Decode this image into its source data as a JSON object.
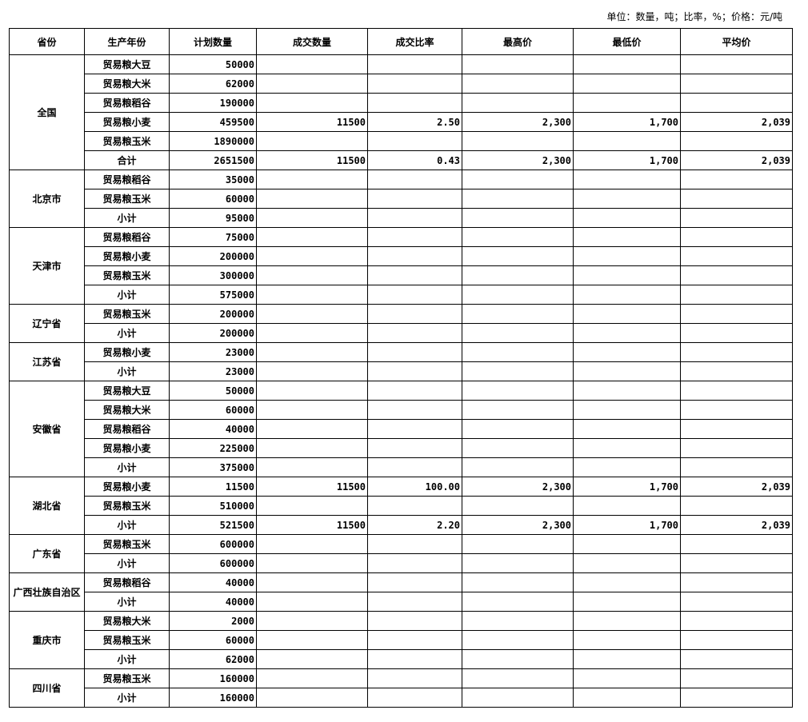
{
  "unit_note": "单位：数量，吨；比率，%；价格：元/吨",
  "headers": [
    "省份",
    "生产年份",
    "计划数量",
    "成交数量",
    "成交比率",
    "最高价",
    "最低价",
    "平均价"
  ],
  "groups": [
    {
      "province": "全国",
      "rows": [
        [
          "贸易粮大豆",
          "50000",
          "",
          "",
          "",
          "",
          ""
        ],
        [
          "贸易粮大米",
          "62000",
          "",
          "",
          "",
          "",
          ""
        ],
        [
          "贸易粮稻谷",
          "190000",
          "",
          "",
          "",
          "",
          ""
        ],
        [
          "贸易粮小麦",
          "459500",
          "11500",
          "2.50",
          "2,300",
          "1,700",
          "2,039"
        ],
        [
          "贸易粮玉米",
          "1890000",
          "",
          "",
          "",
          "",
          ""
        ],
        [
          "合计",
          "2651500",
          "11500",
          "0.43",
          "2,300",
          "1,700",
          "2,039"
        ]
      ]
    },
    {
      "province": "北京市",
      "rows": [
        [
          "贸易粮稻谷",
          "35000",
          "",
          "",
          "",
          "",
          ""
        ],
        [
          "贸易粮玉米",
          "60000",
          "",
          "",
          "",
          "",
          ""
        ],
        [
          "小计",
          "95000",
          "",
          "",
          "",
          "",
          ""
        ]
      ]
    },
    {
      "province": "天津市",
      "rows": [
        [
          "贸易粮稻谷",
          "75000",
          "",
          "",
          "",
          "",
          ""
        ],
        [
          "贸易粮小麦",
          "200000",
          "",
          "",
          "",
          "",
          ""
        ],
        [
          "贸易粮玉米",
          "300000",
          "",
          "",
          "",
          "",
          ""
        ],
        [
          "小计",
          "575000",
          "",
          "",
          "",
          "",
          ""
        ]
      ]
    },
    {
      "province": "辽宁省",
      "rows": [
        [
          "贸易粮玉米",
          "200000",
          "",
          "",
          "",
          "",
          ""
        ],
        [
          "小计",
          "200000",
          "",
          "",
          "",
          "",
          ""
        ]
      ]
    },
    {
      "province": "江苏省",
      "rows": [
        [
          "贸易粮小麦",
          "23000",
          "",
          "",
          "",
          "",
          ""
        ],
        [
          "小计",
          "23000",
          "",
          "",
          "",
          "",
          ""
        ]
      ]
    },
    {
      "province": "安徽省",
      "rows": [
        [
          "贸易粮大豆",
          "50000",
          "",
          "",
          "",
          "",
          ""
        ],
        [
          "贸易粮大米",
          "60000",
          "",
          "",
          "",
          "",
          ""
        ],
        [
          "贸易粮稻谷",
          "40000",
          "",
          "",
          "",
          "",
          ""
        ],
        [
          "贸易粮小麦",
          "225000",
          "",
          "",
          "",
          "",
          ""
        ],
        [
          "小计",
          "375000",
          "",
          "",
          "",
          "",
          ""
        ]
      ]
    },
    {
      "province": "湖北省",
      "rows": [
        [
          "贸易粮小麦",
          "11500",
          "11500",
          "100.00",
          "2,300",
          "1,700",
          "2,039"
        ],
        [
          "贸易粮玉米",
          "510000",
          "",
          "",
          "",
          "",
          ""
        ],
        [
          "小计",
          "521500",
          "11500",
          "2.20",
          "2,300",
          "1,700",
          "2,039"
        ]
      ]
    },
    {
      "province": "广东省",
      "rows": [
        [
          "贸易粮玉米",
          "600000",
          "",
          "",
          "",
          "",
          ""
        ],
        [
          "小计",
          "600000",
          "",
          "",
          "",
          "",
          ""
        ]
      ]
    },
    {
      "province": "广西壮族自治区",
      "rows": [
        [
          "贸易粮稻谷",
          "40000",
          "",
          "",
          "",
          "",
          ""
        ],
        [
          "小计",
          "40000",
          "",
          "",
          "",
          "",
          ""
        ]
      ]
    },
    {
      "province": "重庆市",
      "rows": [
        [
          "贸易粮大米",
          "2000",
          "",
          "",
          "",
          "",
          ""
        ],
        [
          "贸易粮玉米",
          "60000",
          "",
          "",
          "",
          "",
          ""
        ],
        [
          "小计",
          "62000",
          "",
          "",
          "",
          "",
          ""
        ]
      ]
    },
    {
      "province": "四川省",
      "rows": [
        [
          "贸易粮玉米",
          "160000",
          "",
          "",
          "",
          "",
          ""
        ],
        [
          "小计",
          "160000",
          "",
          "",
          "",
          "",
          ""
        ]
      ]
    }
  ]
}
